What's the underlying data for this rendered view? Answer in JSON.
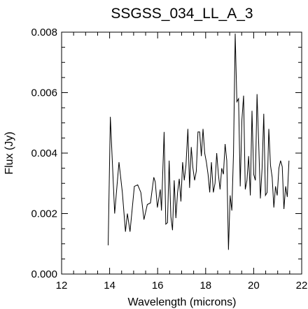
{
  "chart_data": {
    "type": "line",
    "title": "SSGSS_034_LL_A_3",
    "xlabel": "Wavelength (microns)",
    "ylabel": "Flux (Jy)",
    "xlim": [
      12,
      22
    ],
    "ylim": [
      0.0,
      0.008
    ],
    "xticks": [
      12,
      14,
      16,
      18,
      20,
      22
    ],
    "xtick_labels": [
      "12",
      "14",
      "16",
      "18",
      "20",
      "22"
    ],
    "yticks": [
      0.0,
      0.002,
      0.004,
      0.006,
      0.008
    ],
    "ytick_labels": [
      "0.000",
      "0.002",
      "0.004",
      "0.006",
      "0.008"
    ],
    "grid": false,
    "series": [
      {
        "color": "#000000",
        "x": [
          13.94,
          14.03,
          14.21,
          14.39,
          14.53,
          14.66,
          14.74,
          14.85,
          15.03,
          15.17,
          15.3,
          15.43,
          15.57,
          15.7,
          15.84,
          15.9,
          15.99,
          16.11,
          16.16,
          16.27,
          16.34,
          16.41,
          16.48,
          16.55,
          16.62,
          16.69,
          16.76,
          16.83,
          16.9,
          16.97,
          17.04,
          17.11,
          17.18,
          17.26,
          17.33,
          17.4,
          17.47,
          17.54,
          17.61,
          17.68,
          17.75,
          17.82,
          17.89,
          17.96,
          18.03,
          18.1,
          18.17,
          18.24,
          18.32,
          18.39,
          18.46,
          18.53,
          18.6,
          18.67,
          18.74,
          18.81,
          18.88,
          18.95,
          19.02,
          19.09,
          19.16,
          19.23,
          19.3,
          19.37,
          19.44,
          19.51,
          19.58,
          19.65,
          19.72,
          19.79,
          19.86,
          19.93,
          20.0,
          20.07,
          20.14,
          20.21,
          20.28,
          20.35,
          20.42,
          20.49,
          20.56,
          20.63,
          20.7,
          20.77,
          20.84,
          20.91,
          20.98,
          21.05,
          21.12,
          21.19,
          21.26,
          21.33,
          21.4,
          21.47
        ],
        "y": [
          0.00095,
          0.0052,
          0.002,
          0.0037,
          0.0027,
          0.0014,
          0.002,
          0.0014,
          0.0029,
          0.00295,
          0.0027,
          0.0018,
          0.0023,
          0.00235,
          0.0032,
          0.00305,
          0.0022,
          0.0028,
          0.0021,
          0.0047,
          0.00165,
          0.0017,
          0.00375,
          0.0019,
          0.00145,
          0.0031,
          0.00185,
          0.0027,
          0.00315,
          0.0024,
          0.0037,
          0.0031,
          0.0036,
          0.0048,
          0.00285,
          0.0042,
          0.0035,
          0.0031,
          0.0034,
          0.0047,
          0.0047,
          0.0039,
          0.0048,
          0.004,
          0.0037,
          0.0033,
          0.0027,
          0.0037,
          0.0027,
          0.003,
          0.004,
          0.0033,
          0.0028,
          0.0035,
          0.0033,
          0.0043,
          0.00375,
          0.0008,
          0.0026,
          0.0021,
          0.004,
          0.00795,
          0.0057,
          0.0058,
          0.0029,
          0.0051,
          0.0059,
          0.0028,
          0.0031,
          0.0039,
          0.0026,
          0.0054,
          0.0033,
          0.0031,
          0.00595,
          0.0043,
          0.0025,
          0.0035,
          0.0053,
          0.0026,
          0.0027,
          0.0048,
          0.0036,
          0.0032,
          0.0022,
          0.0029,
          0.0026,
          0.0035,
          0.00375,
          0.00355,
          0.00215,
          0.0029,
          0.00255,
          0.00375
        ]
      }
    ]
  }
}
